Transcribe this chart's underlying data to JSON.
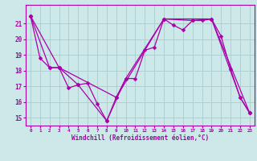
{
  "title": "",
  "xlabel": "Windchill (Refroidissement éolien,°C)",
  "bg_color": "#cce8e8",
  "line_color": "#aa00aa",
  "grid_color": "#aacccc",
  "xlim": [
    -0.5,
    23.5
  ],
  "ylim": [
    14.5,
    22.2
  ],
  "xticks": [
    0,
    1,
    2,
    3,
    4,
    5,
    6,
    7,
    8,
    9,
    10,
    11,
    12,
    13,
    14,
    15,
    16,
    17,
    18,
    19,
    20,
    21,
    22,
    23
  ],
  "yticks": [
    15,
    16,
    17,
    18,
    19,
    20,
    21
  ],
  "line1_x": [
    0,
    1,
    2,
    3,
    4,
    5,
    6,
    7,
    8,
    9,
    10,
    11,
    12,
    13,
    14,
    15,
    16,
    17,
    18,
    19,
    20,
    21,
    22,
    23
  ],
  "line1_y": [
    21.5,
    18.8,
    18.2,
    18.2,
    16.9,
    17.1,
    17.2,
    15.9,
    14.8,
    16.3,
    17.5,
    17.5,
    19.3,
    19.5,
    21.3,
    20.9,
    20.6,
    21.2,
    21.2,
    21.3,
    20.2,
    18.1,
    16.3,
    15.3
  ],
  "line2_x": [
    0,
    2,
    3,
    5,
    8,
    10,
    14,
    17,
    19,
    22,
    23
  ],
  "line2_y": [
    21.5,
    18.2,
    18.2,
    17.1,
    14.8,
    17.5,
    21.3,
    21.2,
    21.3,
    16.3,
    15.3
  ],
  "line3_x": [
    0,
    3,
    9,
    14,
    19,
    23
  ],
  "line3_y": [
    21.5,
    18.2,
    16.3,
    21.3,
    21.3,
    15.3
  ]
}
